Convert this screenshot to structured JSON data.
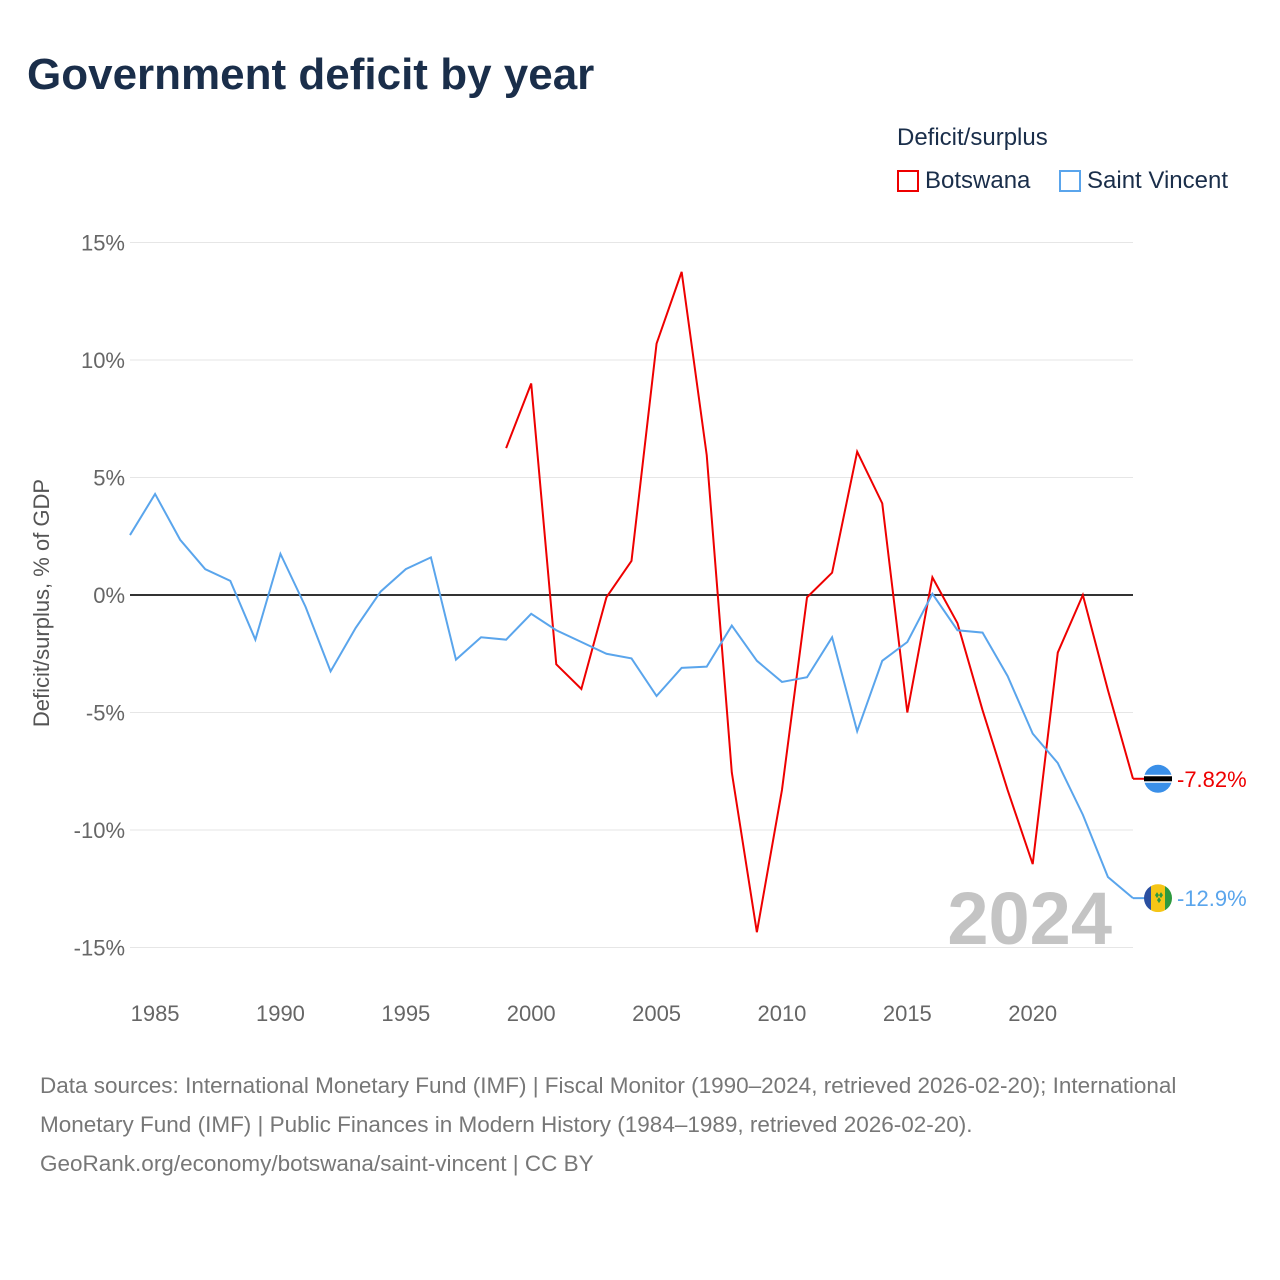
{
  "title": "Government deficit by year",
  "legend": {
    "title": "Deficit/surplus",
    "items": [
      {
        "label": "Botswana",
        "color": "#ee0000"
      },
      {
        "label": "Saint Vincent",
        "color": "#5aa5ec"
      }
    ]
  },
  "year_watermark": "2024",
  "footer": {
    "sources": "Data sources: International Monetary Fund (IMF) | Fiscal Monitor (1990–2024, retrieved 2026-02-20); International Monetary Fund (IMF) | Public Finances in Modern History (1984–1989, retrieved 2026-02-20).",
    "credit": "GeoRank.org/economy/botswana/saint-vincent | CC BY"
  },
  "chart_data": {
    "type": "line",
    "title": "Government deficit by year",
    "xlabel": "",
    "ylabel": "Deficit/surplus, % of GDP",
    "xlim": [
      1984,
      2024
    ],
    "ylim": [
      -15,
      15
    ],
    "x_ticks": [
      1985,
      1990,
      1995,
      2000,
      2005,
      2010,
      2015,
      2020
    ],
    "y_ticks": [
      {
        "v": 15,
        "label": "15%"
      },
      {
        "v": 10,
        "label": "10%"
      },
      {
        "v": 5,
        "label": "5%"
      },
      {
        "v": 0,
        "label": "0%"
      },
      {
        "v": -5,
        "label": "-5%"
      },
      {
        "v": -10,
        "label": "-10%"
      },
      {
        "v": -15,
        "label": "-15%"
      }
    ],
    "grid": true,
    "legend_position": "top-right",
    "series": [
      {
        "name": "Botswana",
        "color": "#ee0000",
        "end_label": "-7.82%",
        "x_start": 1999,
        "values": [
          6.25,
          9.0,
          -2.95,
          -4.0,
          -0.1,
          1.45,
          10.7,
          13.75,
          5.95,
          -7.55,
          -14.35,
          -8.3,
          -0.1,
          0.95,
          6.1,
          3.9,
          -5.0,
          0.75,
          -1.2,
          -4.9,
          -8.3,
          -11.45,
          -2.45,
          0.0,
          -4.05,
          -7.82
        ]
      },
      {
        "name": "Saint Vincent",
        "color": "#5aa5ec",
        "end_label": "-12.9%",
        "x_start": 1984,
        "values": [
          2.55,
          4.3,
          2.35,
          1.1,
          0.6,
          -1.9,
          1.75,
          -0.5,
          -3.25,
          -1.4,
          0.15,
          1.1,
          1.6,
          -2.75,
          -1.8,
          -1.9,
          -0.8,
          -1.5,
          -2.0,
          -2.5,
          -2.7,
          -4.3,
          -3.1,
          -3.05,
          -1.3,
          -2.8,
          -3.7,
          -3.5,
          -1.8,
          -5.8,
          -2.8,
          -2.0,
          0.05,
          -1.5,
          -1.6,
          -3.45,
          -5.9,
          -7.15,
          -9.35,
          -12.0,
          -12.9
        ]
      }
    ]
  }
}
